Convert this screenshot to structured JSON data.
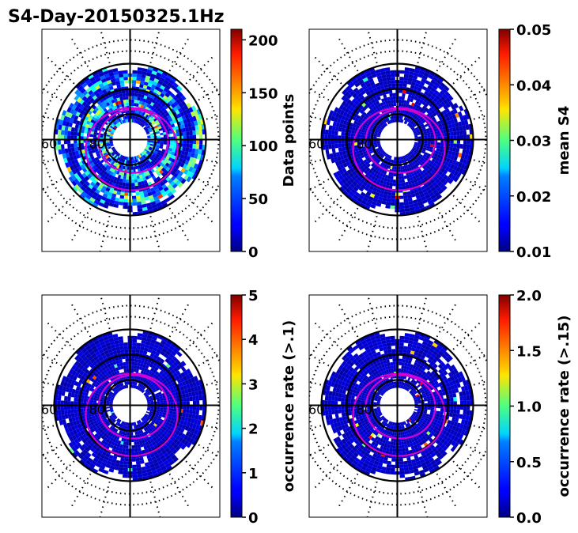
{
  "figure": {
    "title": "S4-Day-20150325.1Hz"
  },
  "chart_data": [
    {
      "type": "heatmap",
      "projection": "polar",
      "panel": "top-left",
      "colorbar": {
        "label": "Data points",
        "range": [
          0,
          210
        ],
        "ticks": [
          0,
          50,
          100,
          150,
          200
        ],
        "tick_labels": [
          "0",
          "50",
          "100",
          "150",
          "200"
        ],
        "colormap": "jet"
      },
      "polar_labels": [
        "60",
        "80"
      ],
      "style": "dense"
    },
    {
      "type": "heatmap",
      "projection": "polar",
      "panel": "top-right",
      "colorbar": {
        "label": "mean S4",
        "range": [
          0.01,
          0.05
        ],
        "ticks": [
          0.01,
          0.02,
          0.03,
          0.04,
          0.05
        ],
        "tick_labels": [
          "0.01",
          "0.02",
          "0.03",
          "0.04",
          "0.05"
        ],
        "colormap": "jet"
      },
      "polar_labels": [
        "60",
        "80"
      ],
      "style": "low"
    },
    {
      "type": "heatmap",
      "projection": "polar",
      "panel": "bottom-left",
      "colorbar": {
        "label": "occurrence rate (>.1)",
        "range": [
          0,
          5
        ],
        "ticks": [
          0,
          1,
          2,
          3,
          4,
          5
        ],
        "tick_labels": [
          "0",
          "1",
          "2",
          "3",
          "4",
          "5"
        ],
        "colormap": "jet"
      },
      "polar_labels": [
        "60",
        "80"
      ],
      "style": "low"
    },
    {
      "type": "heatmap",
      "projection": "polar",
      "panel": "bottom-right",
      "colorbar": {
        "label": "occurrence rate (>.15)",
        "range": [
          0,
          2
        ],
        "ticks": [
          0,
          0.5,
          1,
          1.5,
          2
        ],
        "tick_labels": [
          "0.0",
          "0.5",
          "1.0",
          "1.5",
          "2.0"
        ],
        "colormap": "jet"
      },
      "polar_labels": [
        "60",
        "80"
      ],
      "style": "low"
    }
  ]
}
